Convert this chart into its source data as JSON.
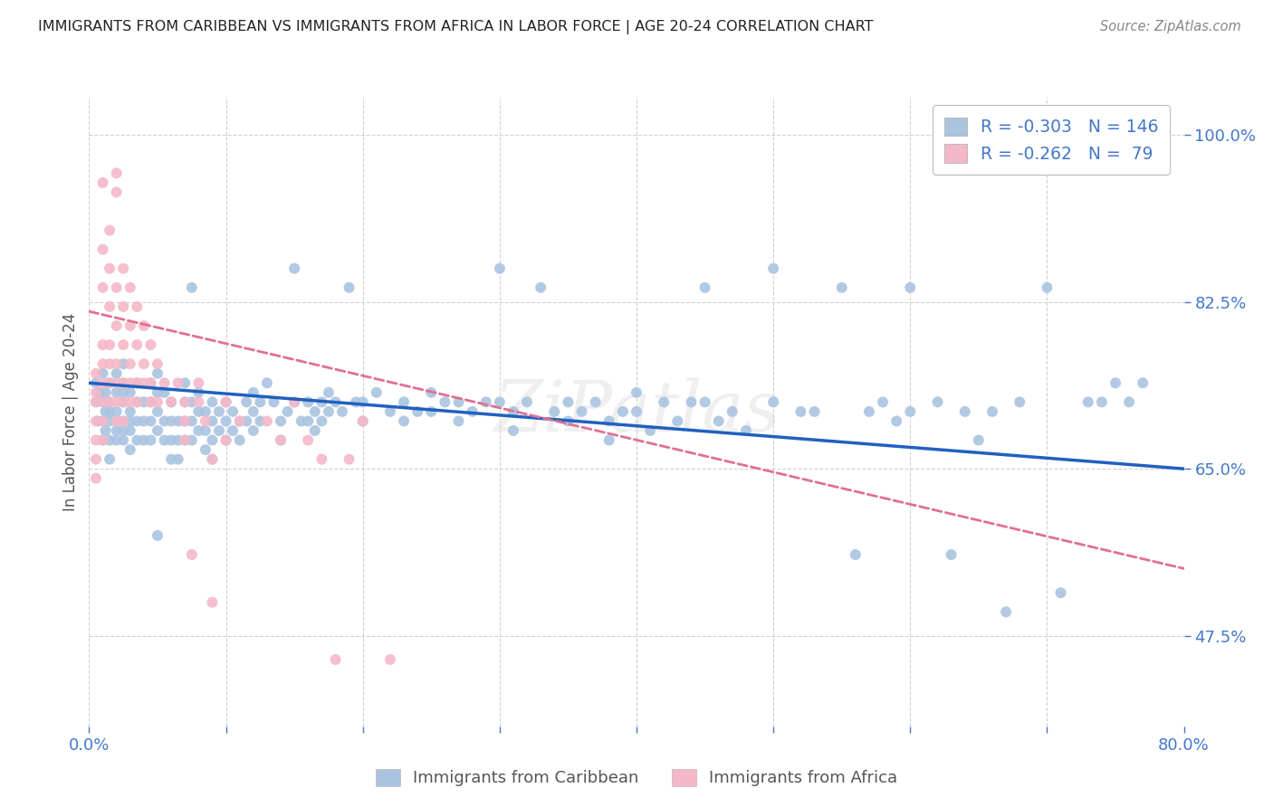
{
  "title": "IMMIGRANTS FROM CARIBBEAN VS IMMIGRANTS FROM AFRICA IN LABOR FORCE | AGE 20-24 CORRELATION CHART",
  "source": "Source: ZipAtlas.com",
  "ylabel": "In Labor Force | Age 20-24",
  "x_min": 0.0,
  "x_max": 0.8,
  "y_min": 0.38,
  "y_max": 1.04,
  "x_ticks": [
    0.0,
    0.1,
    0.2,
    0.3,
    0.4,
    0.5,
    0.6,
    0.7,
    0.8
  ],
  "x_tick_labels": [
    "0.0%",
    "",
    "",
    "",
    "",
    "",
    "",
    "",
    "80.0%"
  ],
  "y_ticks": [
    0.475,
    0.65,
    0.825,
    1.0
  ],
  "y_tick_labels": [
    "47.5%",
    "65.0%",
    "82.5%",
    "100.0%"
  ],
  "caribbean_color": "#aac4e0",
  "africa_color": "#f5b8c8",
  "caribbean_line_color": "#2060c0",
  "africa_line_color": "#e07090",
  "caribbean_R": -0.303,
  "caribbean_N": 146,
  "africa_R": -0.262,
  "africa_N": 79,
  "legend_label_caribbean": "Immigrants from Caribbean",
  "legend_label_africa": "Immigrants from Africa",
  "watermark": "ZiPatlas",
  "background_color": "#ffffff",
  "grid_color": "#cccccc",
  "title_color": "#222222",
  "axis_label_color": "#4477cc",
  "carib_line_x0": 0.0,
  "carib_line_y0": 0.74,
  "carib_line_x1": 0.8,
  "carib_line_y1": 0.65,
  "africa_line_x0": 0.0,
  "africa_line_y0": 0.815,
  "africa_line_x1": 0.46,
  "africa_line_y1": 0.66,
  "caribbean_scatter": [
    [
      0.005,
      0.74
    ],
    [
      0.005,
      0.72
    ],
    [
      0.007,
      0.73
    ],
    [
      0.007,
      0.7
    ],
    [
      0.01,
      0.75
    ],
    [
      0.01,
      0.72
    ],
    [
      0.01,
      0.68
    ],
    [
      0.012,
      0.73
    ],
    [
      0.012,
      0.71
    ],
    [
      0.012,
      0.69
    ],
    [
      0.015,
      0.74
    ],
    [
      0.015,
      0.72
    ],
    [
      0.015,
      0.71
    ],
    [
      0.015,
      0.7
    ],
    [
      0.015,
      0.68
    ],
    [
      0.015,
      0.66
    ],
    [
      0.02,
      0.75
    ],
    [
      0.02,
      0.73
    ],
    [
      0.02,
      0.71
    ],
    [
      0.02,
      0.7
    ],
    [
      0.02,
      0.69
    ],
    [
      0.02,
      0.68
    ],
    [
      0.025,
      0.76
    ],
    [
      0.025,
      0.74
    ],
    [
      0.025,
      0.73
    ],
    [
      0.025,
      0.72
    ],
    [
      0.025,
      0.7
    ],
    [
      0.025,
      0.69
    ],
    [
      0.025,
      0.68
    ],
    [
      0.03,
      0.73
    ],
    [
      0.03,
      0.71
    ],
    [
      0.03,
      0.7
    ],
    [
      0.03,
      0.69
    ],
    [
      0.03,
      0.67
    ],
    [
      0.035,
      0.74
    ],
    [
      0.035,
      0.72
    ],
    [
      0.035,
      0.7
    ],
    [
      0.035,
      0.68
    ],
    [
      0.04,
      0.72
    ],
    [
      0.04,
      0.7
    ],
    [
      0.04,
      0.68
    ],
    [
      0.045,
      0.74
    ],
    [
      0.045,
      0.72
    ],
    [
      0.045,
      0.7
    ],
    [
      0.045,
      0.68
    ],
    [
      0.05,
      0.75
    ],
    [
      0.05,
      0.73
    ],
    [
      0.05,
      0.71
    ],
    [
      0.05,
      0.69
    ],
    [
      0.05,
      0.58
    ],
    [
      0.055,
      0.73
    ],
    [
      0.055,
      0.7
    ],
    [
      0.055,
      0.68
    ],
    [
      0.06,
      0.72
    ],
    [
      0.06,
      0.7
    ],
    [
      0.06,
      0.68
    ],
    [
      0.06,
      0.66
    ],
    [
      0.065,
      0.7
    ],
    [
      0.065,
      0.68
    ],
    [
      0.065,
      0.66
    ],
    [
      0.07,
      0.74
    ],
    [
      0.07,
      0.72
    ],
    [
      0.07,
      0.7
    ],
    [
      0.07,
      0.68
    ],
    [
      0.075,
      0.84
    ],
    [
      0.075,
      0.72
    ],
    [
      0.075,
      0.7
    ],
    [
      0.075,
      0.68
    ],
    [
      0.08,
      0.73
    ],
    [
      0.08,
      0.71
    ],
    [
      0.08,
      0.69
    ],
    [
      0.085,
      0.71
    ],
    [
      0.085,
      0.69
    ],
    [
      0.085,
      0.67
    ],
    [
      0.09,
      0.72
    ],
    [
      0.09,
      0.7
    ],
    [
      0.09,
      0.68
    ],
    [
      0.09,
      0.66
    ],
    [
      0.095,
      0.71
    ],
    [
      0.095,
      0.69
    ],
    [
      0.1,
      0.72
    ],
    [
      0.1,
      0.7
    ],
    [
      0.1,
      0.68
    ],
    [
      0.105,
      0.71
    ],
    [
      0.105,
      0.69
    ],
    [
      0.11,
      0.7
    ],
    [
      0.11,
      0.68
    ],
    [
      0.115,
      0.72
    ],
    [
      0.115,
      0.7
    ],
    [
      0.12,
      0.73
    ],
    [
      0.12,
      0.71
    ],
    [
      0.12,
      0.69
    ],
    [
      0.125,
      0.72
    ],
    [
      0.125,
      0.7
    ],
    [
      0.13,
      0.74
    ],
    [
      0.135,
      0.72
    ],
    [
      0.14,
      0.7
    ],
    [
      0.14,
      0.68
    ],
    [
      0.145,
      0.71
    ],
    [
      0.15,
      0.86
    ],
    [
      0.15,
      0.72
    ],
    [
      0.155,
      0.7
    ],
    [
      0.16,
      0.72
    ],
    [
      0.16,
      0.7
    ],
    [
      0.165,
      0.71
    ],
    [
      0.165,
      0.69
    ],
    [
      0.17,
      0.72
    ],
    [
      0.17,
      0.7
    ],
    [
      0.175,
      0.73
    ],
    [
      0.175,
      0.71
    ],
    [
      0.18,
      0.72
    ],
    [
      0.185,
      0.71
    ],
    [
      0.19,
      0.84
    ],
    [
      0.195,
      0.72
    ],
    [
      0.2,
      0.72
    ],
    [
      0.2,
      0.7
    ],
    [
      0.21,
      0.73
    ],
    [
      0.22,
      0.71
    ],
    [
      0.23,
      0.72
    ],
    [
      0.23,
      0.7
    ],
    [
      0.24,
      0.71
    ],
    [
      0.25,
      0.73
    ],
    [
      0.25,
      0.71
    ],
    [
      0.26,
      0.72
    ],
    [
      0.27,
      0.72
    ],
    [
      0.27,
      0.7
    ],
    [
      0.28,
      0.71
    ],
    [
      0.29,
      0.72
    ],
    [
      0.3,
      0.86
    ],
    [
      0.3,
      0.72
    ],
    [
      0.31,
      0.71
    ],
    [
      0.31,
      0.69
    ],
    [
      0.32,
      0.72
    ],
    [
      0.33,
      0.84
    ],
    [
      0.34,
      0.71
    ],
    [
      0.35,
      0.72
    ],
    [
      0.35,
      0.7
    ],
    [
      0.36,
      0.71
    ],
    [
      0.37,
      0.72
    ],
    [
      0.38,
      0.7
    ],
    [
      0.38,
      0.68
    ],
    [
      0.39,
      0.71
    ],
    [
      0.4,
      0.73
    ],
    [
      0.4,
      0.71
    ],
    [
      0.41,
      0.69
    ],
    [
      0.42,
      0.72
    ],
    [
      0.43,
      0.7
    ],
    [
      0.44,
      0.72
    ],
    [
      0.45,
      0.84
    ],
    [
      0.45,
      0.72
    ],
    [
      0.46,
      0.7
    ],
    [
      0.47,
      0.71
    ],
    [
      0.48,
      0.69
    ],
    [
      0.5,
      0.86
    ],
    [
      0.5,
      0.72
    ],
    [
      0.52,
      0.71
    ],
    [
      0.53,
      0.71
    ],
    [
      0.55,
      0.84
    ],
    [
      0.56,
      0.56
    ],
    [
      0.57,
      0.71
    ],
    [
      0.58,
      0.72
    ],
    [
      0.59,
      0.7
    ],
    [
      0.6,
      0.84
    ],
    [
      0.6,
      0.71
    ],
    [
      0.62,
      0.72
    ],
    [
      0.63,
      0.56
    ],
    [
      0.64,
      0.71
    ],
    [
      0.65,
      0.68
    ],
    [
      0.66,
      0.71
    ],
    [
      0.67,
      0.5
    ],
    [
      0.68,
      0.72
    ],
    [
      0.7,
      0.84
    ],
    [
      0.71,
      0.52
    ],
    [
      0.73,
      0.72
    ],
    [
      0.74,
      0.72
    ],
    [
      0.75,
      0.74
    ],
    [
      0.76,
      0.72
    ],
    [
      0.77,
      0.74
    ]
  ],
  "africa_scatter": [
    [
      0.005,
      0.75
    ],
    [
      0.005,
      0.73
    ],
    [
      0.005,
      0.72
    ],
    [
      0.005,
      0.7
    ],
    [
      0.005,
      0.68
    ],
    [
      0.005,
      0.66
    ],
    [
      0.005,
      0.64
    ],
    [
      0.01,
      0.95
    ],
    [
      0.01,
      0.88
    ],
    [
      0.01,
      0.84
    ],
    [
      0.01,
      0.78
    ],
    [
      0.01,
      0.76
    ],
    [
      0.01,
      0.74
    ],
    [
      0.01,
      0.72
    ],
    [
      0.01,
      0.7
    ],
    [
      0.01,
      0.68
    ],
    [
      0.015,
      0.9
    ],
    [
      0.015,
      0.86
    ],
    [
      0.015,
      0.82
    ],
    [
      0.015,
      0.78
    ],
    [
      0.015,
      0.76
    ],
    [
      0.015,
      0.74
    ],
    [
      0.015,
      0.72
    ],
    [
      0.02,
      0.96
    ],
    [
      0.02,
      0.94
    ],
    [
      0.02,
      0.84
    ],
    [
      0.02,
      0.8
    ],
    [
      0.02,
      0.76
    ],
    [
      0.02,
      0.74
    ],
    [
      0.02,
      0.72
    ],
    [
      0.02,
      0.7
    ],
    [
      0.025,
      0.86
    ],
    [
      0.025,
      0.82
    ],
    [
      0.025,
      0.78
    ],
    [
      0.025,
      0.74
    ],
    [
      0.025,
      0.72
    ],
    [
      0.025,
      0.7
    ],
    [
      0.03,
      0.84
    ],
    [
      0.03,
      0.8
    ],
    [
      0.03,
      0.76
    ],
    [
      0.03,
      0.74
    ],
    [
      0.03,
      0.72
    ],
    [
      0.035,
      0.82
    ],
    [
      0.035,
      0.78
    ],
    [
      0.035,
      0.74
    ],
    [
      0.035,
      0.72
    ],
    [
      0.04,
      0.8
    ],
    [
      0.04,
      0.76
    ],
    [
      0.04,
      0.74
    ],
    [
      0.045,
      0.78
    ],
    [
      0.045,
      0.74
    ],
    [
      0.045,
      0.72
    ],
    [
      0.05,
      0.76
    ],
    [
      0.05,
      0.72
    ],
    [
      0.055,
      0.74
    ],
    [
      0.06,
      0.72
    ],
    [
      0.065,
      0.74
    ],
    [
      0.07,
      0.72
    ],
    [
      0.07,
      0.7
    ],
    [
      0.07,
      0.68
    ],
    [
      0.075,
      0.56
    ],
    [
      0.08,
      0.74
    ],
    [
      0.08,
      0.72
    ],
    [
      0.085,
      0.7
    ],
    [
      0.09,
      0.66
    ],
    [
      0.09,
      0.51
    ],
    [
      0.1,
      0.72
    ],
    [
      0.1,
      0.68
    ],
    [
      0.11,
      0.7
    ],
    [
      0.13,
      0.7
    ],
    [
      0.14,
      0.68
    ],
    [
      0.15,
      0.72
    ],
    [
      0.16,
      0.68
    ],
    [
      0.17,
      0.66
    ],
    [
      0.18,
      0.45
    ],
    [
      0.19,
      0.66
    ],
    [
      0.2,
      0.7
    ],
    [
      0.22,
      0.45
    ]
  ]
}
